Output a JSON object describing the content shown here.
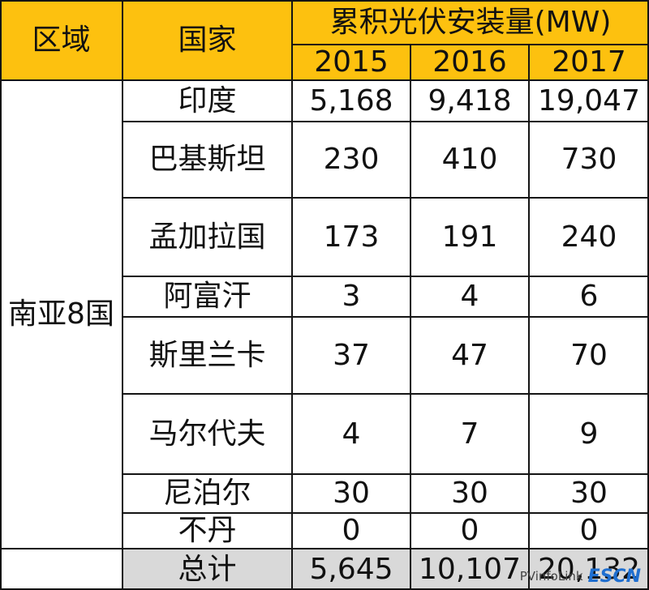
{
  "table": {
    "header": {
      "region": "区域",
      "country": "国家",
      "metric": "累积光伏安装量(MW)",
      "years": [
        "2015",
        "2016",
        "2017"
      ]
    },
    "region_name": "南亚8国",
    "rows": [
      {
        "country": "印度",
        "values": [
          "5,168",
          "9,418",
          "19,047"
        ]
      },
      {
        "country": "巴基斯坦",
        "values": [
          "230",
          "410",
          "730"
        ]
      },
      {
        "country": "孟加拉国",
        "values": [
          "173",
          "191",
          "240"
        ]
      },
      {
        "country": "阿富汗",
        "values": [
          "3",
          "4",
          "6"
        ]
      },
      {
        "country": "斯里兰卡",
        "values": [
          "37",
          "47",
          "70"
        ]
      },
      {
        "country": "马尔代夫",
        "values": [
          "4",
          "7",
          "9"
        ]
      },
      {
        "country": "尼泊尔",
        "values": [
          "30",
          "30",
          "30"
        ]
      },
      {
        "country": "不丹",
        "values": [
          "0",
          "0",
          "0"
        ]
      }
    ],
    "total": {
      "label": "总计",
      "values": [
        "5,645",
        "10,107",
        "20,132"
      ]
    }
  },
  "colors": {
    "header_fill": "#fdc10f",
    "total_fill": "#d9d9d9",
    "border": "#141414"
  },
  "watermark": {
    "text": "PVinfoLink",
    "site_mark": "ESCN"
  }
}
